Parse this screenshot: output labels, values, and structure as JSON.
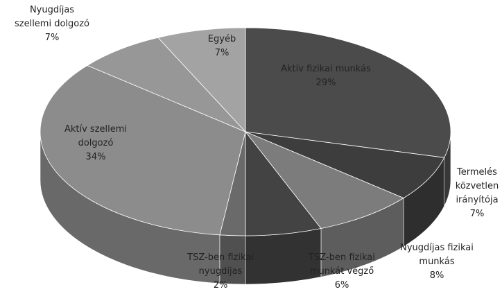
{
  "chart_data": {
    "type": "pie",
    "3d": true,
    "categories": [
      "Aktív fizikai munkás",
      "Termelés közvetlen irányítója",
      "Nyugdíjas fizikai munkás",
      "TSZ-ben fizikai munkát végző",
      "TSZ-ben fizikai nyugdíjas",
      "Aktív szellemi dolgozó",
      "Nyugdíjas szellemi dolgozó",
      "Egyéb"
    ],
    "values": [
      29,
      7,
      8,
      6,
      2,
      34,
      7,
      7
    ],
    "value_labels": [
      "29%",
      "7%",
      "8%",
      "6%",
      "2%",
      "34%",
      "7%",
      "7%"
    ],
    "colors": [
      "#4b4b4b",
      "#3d3d3d",
      "#7c7c7c",
      "#434343",
      "#6a6a6a",
      "#8c8c8c",
      "#979797",
      "#a3a3a3"
    ]
  }
}
